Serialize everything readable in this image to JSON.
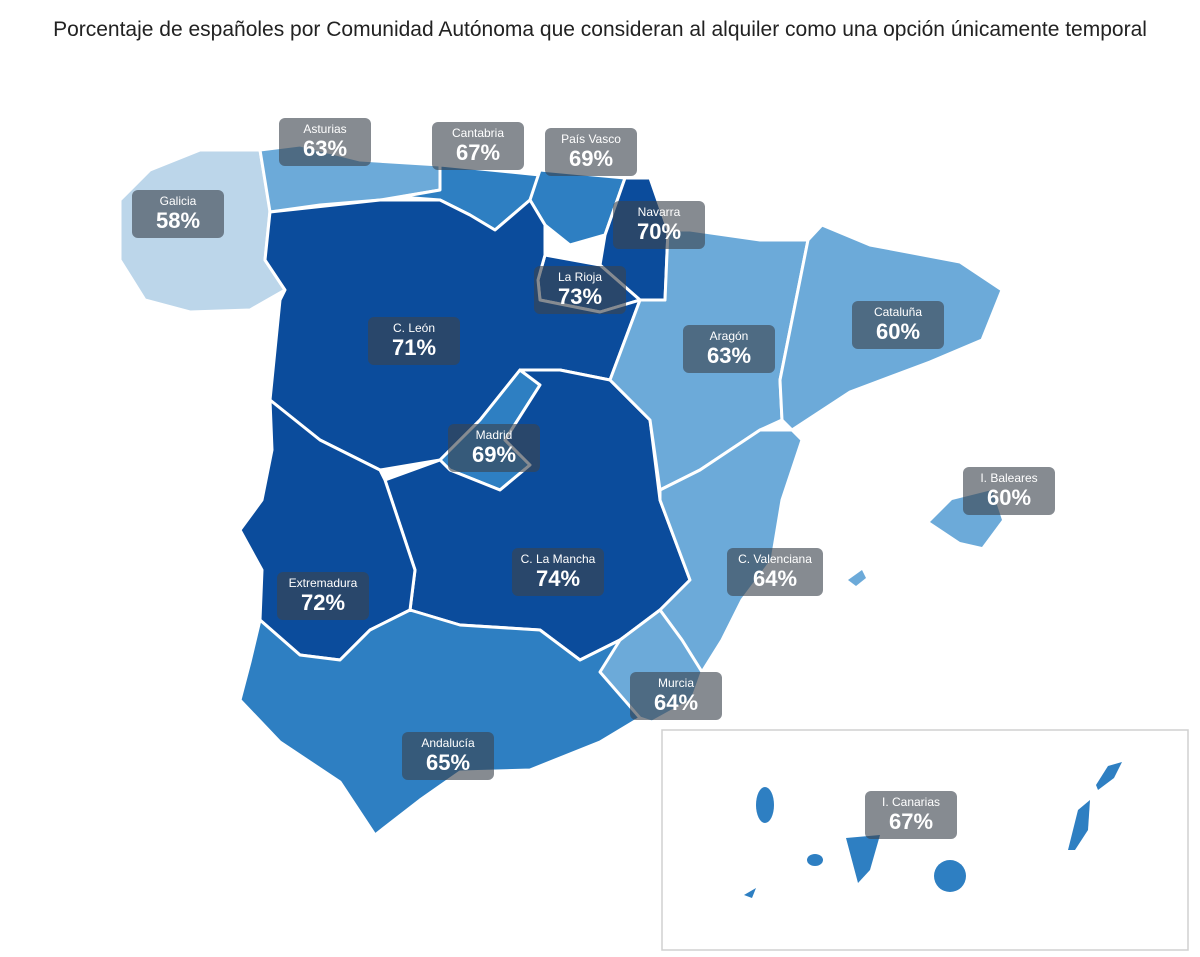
{
  "title": "Porcentaje de españoles por Comunidad Autónoma que consideran al alquiler como una opción únicamente temporal",
  "palette": {
    "light": "#bcd6ea",
    "mid_light": "#6caad9",
    "mid": "#2e7fc2",
    "dark": "#0b4c9c"
  },
  "regions": [
    {
      "name": "Galicia",
      "value": "58%",
      "shade": "light"
    },
    {
      "name": "Asturias",
      "value": "63%",
      "shade": "mid_light"
    },
    {
      "name": "Cantabria",
      "value": "67%",
      "shade": "mid"
    },
    {
      "name": "País Vasco",
      "value": "69%",
      "shade": "mid"
    },
    {
      "name": "Navarra",
      "value": "70%",
      "shade": "dark"
    },
    {
      "name": "La Rioja",
      "value": "73%",
      "shade": "dark"
    },
    {
      "name": "C. León",
      "value": "71%",
      "shade": "dark"
    },
    {
      "name": "Aragón",
      "value": "63%",
      "shade": "mid_light"
    },
    {
      "name": "Cataluña",
      "value": "60%",
      "shade": "mid_light"
    },
    {
      "name": "Madrid",
      "value": "69%",
      "shade": "mid"
    },
    {
      "name": "I. Baleares",
      "value": "60%",
      "shade": "mid_light"
    },
    {
      "name": "C. Valenciana",
      "value": "64%",
      "shade": "mid_light"
    },
    {
      "name": "C. La Mancha",
      "value": "74%",
      "shade": "dark"
    },
    {
      "name": "Extremadura",
      "value": "72%",
      "shade": "dark"
    },
    {
      "name": "Murcia",
      "value": "64%",
      "shade": "mid_light"
    },
    {
      "name": "Andalucía",
      "value": "65%",
      "shade": "mid"
    },
    {
      "name": "I. Canarias",
      "value": "67%",
      "shade": "mid"
    }
  ]
}
